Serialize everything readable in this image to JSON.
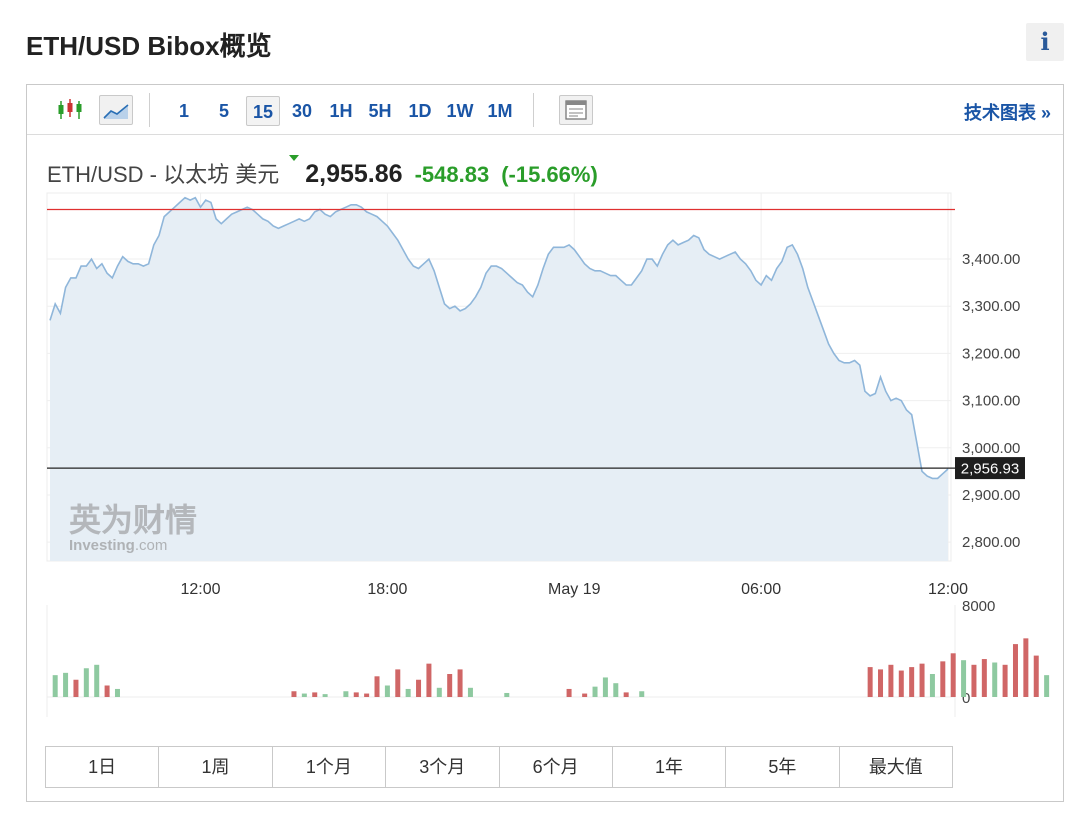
{
  "page": {
    "title": "ETH/USD Bibox概览",
    "info_icon": "info-icon"
  },
  "toolbar": {
    "chart_type_icons": [
      "candlestick-icon",
      "area-chart-icon"
    ],
    "intervals": [
      "1",
      "5",
      "15",
      "30",
      "1H",
      "5H",
      "1D",
      "1W",
      "1M"
    ],
    "active_interval": "15",
    "layout_icon": "layout-icon",
    "tech_chart_link": "技术图表 »"
  },
  "quote": {
    "pair": "ETH/USD - 以太坊 美元",
    "last": "2,955.86",
    "change": "-548.83",
    "change_pct": "(-15.66%)",
    "change_color": "#2a9d2a"
  },
  "watermark": {
    "cn": "英为财情",
    "en": "Investing",
    "domain": ".com"
  },
  "chart_data": {
    "type": "area",
    "price_axis": {
      "ylim": [
        2760,
        3540
      ],
      "ticks": [
        3400,
        3300,
        3200,
        3100,
        3000,
        2900,
        2800
      ],
      "tick_labels": [
        "3,400.00",
        "3,300.00",
        "3,200.00",
        "3,100.00",
        "3,000.00",
        "2,900.00",
        "2,800.00"
      ]
    },
    "x_ticks": [
      {
        "label": "12:00",
        "index": 29
      },
      {
        "label": "18:00",
        "index": 65
      },
      {
        "label": "May 19",
        "index": 101
      },
      {
        "label": "06:00",
        "index": 137
      },
      {
        "label": "12:00",
        "index": 173
      }
    ],
    "reference_line": {
      "value": 3505,
      "color": "#e03030"
    },
    "last_price": {
      "value": 2956.93,
      "label": "2,956.93"
    },
    "series_color": "#8fb6da",
    "fill_color": "#e6eef5",
    "price": [
      3270,
      3305,
      3285,
      3340,
      3360,
      3360,
      3385,
      3385,
      3400,
      3380,
      3390,
      3370,
      3360,
      3385,
      3405,
      3395,
      3390,
      3390,
      3385,
      3390,
      3430,
      3450,
      3490,
      3500,
      3510,
      3520,
      3530,
      3525,
      3530,
      3510,
      3525,
      3520,
      3485,
      3475,
      3485,
      3495,
      3500,
      3505,
      3510,
      3505,
      3495,
      3485,
      3480,
      3470,
      3465,
      3470,
      3475,
      3480,
      3485,
      3480,
      3485,
      3500,
      3505,
      3495,
      3490,
      3500,
      3505,
      3510,
      3515,
      3515,
      3510,
      3500,
      3495,
      3490,
      3480,
      3470,
      3455,
      3440,
      3420,
      3400,
      3385,
      3380,
      3390,
      3400,
      3375,
      3340,
      3305,
      3295,
      3300,
      3290,
      3295,
      3305,
      3320,
      3340,
      3370,
      3385,
      3385,
      3380,
      3370,
      3360,
      3350,
      3345,
      3330,
      3320,
      3345,
      3380,
      3410,
      3425,
      3425,
      3425,
      3430,
      3420,
      3405,
      3390,
      3380,
      3375,
      3375,
      3370,
      3365,
      3365,
      3355,
      3345,
      3345,
      3360,
      3375,
      3400,
      3400,
      3385,
      3410,
      3430,
      3440,
      3430,
      3435,
      3440,
      3450,
      3445,
      3420,
      3410,
      3405,
      3400,
      3405,
      3410,
      3415,
      3400,
      3390,
      3375,
      3355,
      3345,
      3365,
      3355,
      3380,
      3395,
      3425,
      3430,
      3410,
      3380,
      3340,
      3310,
      3280,
      3250,
      3220,
      3200,
      3185,
      3180,
      3180,
      3185,
      3175,
      3120,
      3110,
      3115,
      3150,
      3120,
      3100,
      3105,
      3100,
      3080,
      3070,
      3010,
      2950,
      2940,
      2935,
      2935,
      2945,
      2955
    ],
    "volume_axis": {
      "ylim": [
        0,
        8000
      ],
      "tick_labels": [
        "8000",
        "0"
      ]
    },
    "volume": [
      {
        "i": 1,
        "v": 1900,
        "up": true
      },
      {
        "i": 3,
        "v": 2100,
        "up": true
      },
      {
        "i": 5,
        "v": 1500,
        "up": false
      },
      {
        "i": 7,
        "v": 2500,
        "up": true
      },
      {
        "i": 9,
        "v": 2800,
        "up": true
      },
      {
        "i": 11,
        "v": 1000,
        "up": false
      },
      {
        "i": 13,
        "v": 700,
        "up": true
      },
      {
        "i": 47,
        "v": 500,
        "up": false
      },
      {
        "i": 49,
        "v": 300,
        "up": true
      },
      {
        "i": 51,
        "v": 400,
        "up": false
      },
      {
        "i": 53,
        "v": 250,
        "up": true
      },
      {
        "i": 57,
        "v": 500,
        "up": true
      },
      {
        "i": 59,
        "v": 400,
        "up": false
      },
      {
        "i": 61,
        "v": 300,
        "up": false
      },
      {
        "i": 63,
        "v": 1800,
        "up": false
      },
      {
        "i": 65,
        "v": 1000,
        "up": true
      },
      {
        "i": 67,
        "v": 2400,
        "up": false
      },
      {
        "i": 69,
        "v": 700,
        "up": true
      },
      {
        "i": 71,
        "v": 1500,
        "up": false
      },
      {
        "i": 73,
        "v": 2900,
        "up": false
      },
      {
        "i": 75,
        "v": 800,
        "up": true
      },
      {
        "i": 77,
        "v": 2000,
        "up": false
      },
      {
        "i": 79,
        "v": 2400,
        "up": false
      },
      {
        "i": 81,
        "v": 800,
        "up": true
      },
      {
        "i": 88,
        "v": 350,
        "up": true
      },
      {
        "i": 100,
        "v": 700,
        "up": false
      },
      {
        "i": 103,
        "v": 300,
        "up": false
      },
      {
        "i": 105,
        "v": 900,
        "up": true
      },
      {
        "i": 107,
        "v": 1700,
        "up": true
      },
      {
        "i": 109,
        "v": 1200,
        "up": true
      },
      {
        "i": 111,
        "v": 400,
        "up": false
      },
      {
        "i": 114,
        "v": 500,
        "up": true
      },
      {
        "i": 158,
        "v": 2600,
        "up": false
      },
      {
        "i": 160,
        "v": 2400,
        "up": false
      },
      {
        "i": 162,
        "v": 2800,
        "up": false
      },
      {
        "i": 164,
        "v": 2300,
        "up": false
      },
      {
        "i": 166,
        "v": 2600,
        "up": false
      },
      {
        "i": 168,
        "v": 2900,
        "up": false
      },
      {
        "i": 170,
        "v": 2000,
        "up": true
      },
      {
        "i": 172,
        "v": 3100,
        "up": false
      },
      {
        "i": 174,
        "v": 3800,
        "up": false
      },
      {
        "i": 176,
        "v": 3200,
        "up": true
      },
      {
        "i": 178,
        "v": 2800,
        "up": false
      },
      {
        "i": 180,
        "v": 3300,
        "up": false
      },
      {
        "i": 182,
        "v": 3000,
        "up": true
      },
      {
        "i": 184,
        "v": 2800,
        "up": false
      },
      {
        "i": 186,
        "v": 4600,
        "up": false
      },
      {
        "i": 188,
        "v": 5100,
        "up": false
      },
      {
        "i": 190,
        "v": 3600,
        "up": false
      },
      {
        "i": 192,
        "v": 1900,
        "up": true
      }
    ],
    "volume_up_color": "#8ec9a0",
    "volume_down_color": "#d06666"
  },
  "ranges": [
    "1日",
    "1周",
    "1个月",
    "3个月",
    "6个月",
    "1年",
    "5年",
    "最大值"
  ]
}
